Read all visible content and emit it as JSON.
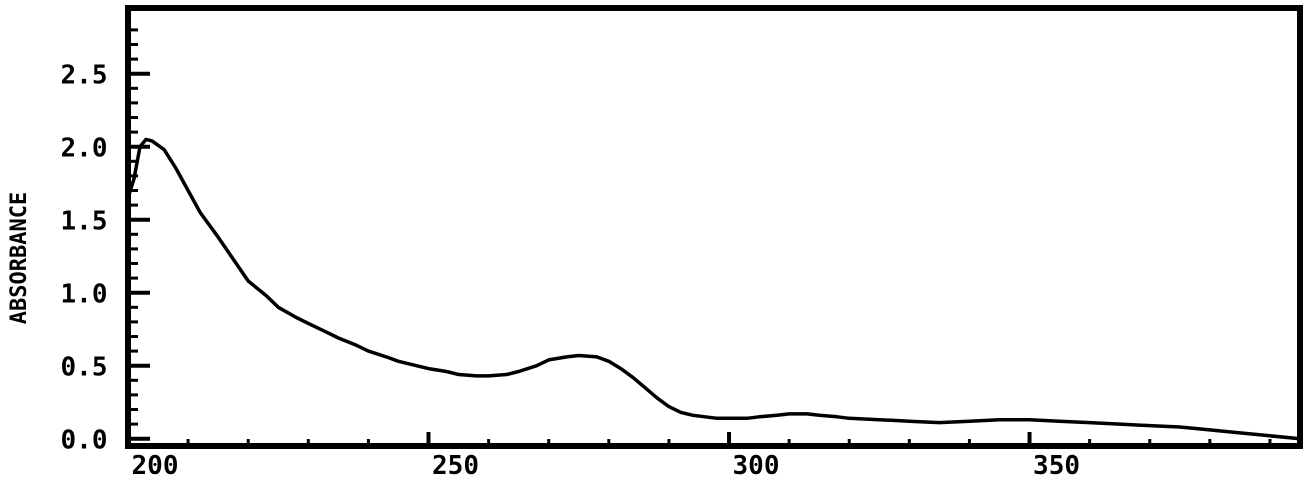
{
  "chart_data": {
    "type": "line",
    "title": "",
    "xlabel": "",
    "ylabel": "ABSORBANCE",
    "xlim": [
      200,
      395
    ],
    "ylim": [
      -0.05,
      2.95
    ],
    "xticks": [
      200,
      250,
      300,
      350
    ],
    "xtick_labels": [
      "200",
      "250",
      "300",
      "350"
    ],
    "yticks": [
      0.0,
      0.5,
      1.0,
      1.5,
      2.0,
      2.5
    ],
    "ytick_labels": [
      "0.0",
      "0.5",
      "1.0",
      "1.5",
      "2.0",
      "2.5"
    ],
    "grid": false,
    "legend": "none",
    "colors": {
      "line": "#000000",
      "frame": "#000000",
      "background": "#ffffff"
    },
    "series": [
      {
        "x": [
          200,
          201,
          202,
          203,
          204,
          206,
          208,
          210,
          212,
          215,
          218,
          220,
          223,
          225,
          228,
          230,
          233,
          235,
          238,
          240,
          243,
          245,
          248,
          250,
          253,
          255,
          258,
          260,
          263,
          265,
          268,
          270,
          273,
          275,
          278,
          280,
          282,
          284,
          286,
          288,
          290,
          292,
          294,
          296,
          298,
          300,
          303,
          305,
          308,
          310,
          313,
          315,
          318,
          320,
          325,
          330,
          335,
          340,
          345,
          350,
          355,
          360,
          365,
          370,
          375,
          380,
          385,
          390,
          395
        ],
        "y": [
          1.65,
          1.78,
          2.0,
          2.05,
          2.04,
          1.98,
          1.85,
          1.7,
          1.55,
          1.38,
          1.2,
          1.08,
          0.98,
          0.9,
          0.83,
          0.79,
          0.73,
          0.69,
          0.64,
          0.6,
          0.56,
          0.53,
          0.5,
          0.48,
          0.46,
          0.44,
          0.43,
          0.43,
          0.44,
          0.46,
          0.5,
          0.54,
          0.56,
          0.57,
          0.56,
          0.53,
          0.48,
          0.42,
          0.35,
          0.28,
          0.22,
          0.18,
          0.16,
          0.15,
          0.14,
          0.14,
          0.14,
          0.15,
          0.16,
          0.17,
          0.17,
          0.16,
          0.15,
          0.14,
          0.13,
          0.12,
          0.11,
          0.12,
          0.13,
          0.13,
          0.12,
          0.11,
          0.1,
          0.09,
          0.08,
          0.06,
          0.04,
          0.02,
          0.0
        ]
      }
    ]
  }
}
